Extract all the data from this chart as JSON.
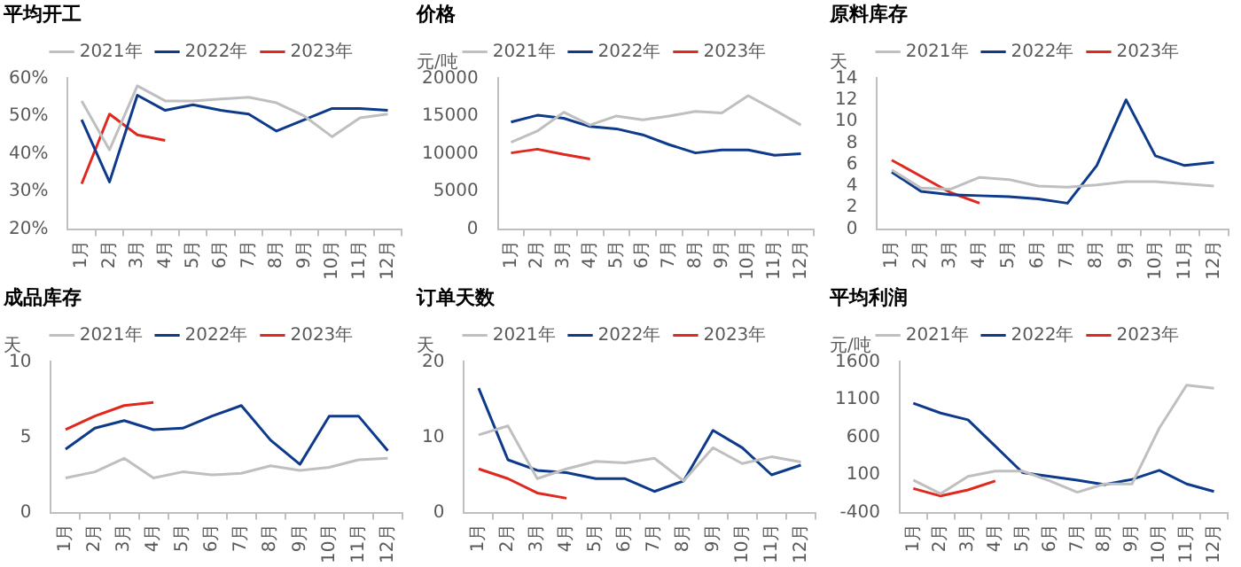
{
  "chart_data": [
    {
      "type": "line",
      "title": "平均开工",
      "categories": [
        "1月",
        "2月",
        "3月",
        "4月",
        "5月",
        "6月",
        "7月",
        "8月",
        "9月",
        "10月",
        "11月",
        "12月"
      ],
      "ylim": [
        20,
        60
      ],
      "yticks": [
        {
          "value": 20,
          "label": "20%"
        },
        {
          "value": 30,
          "label": "30%"
        },
        {
          "value": 40,
          "label": "40%"
        },
        {
          "value": 50,
          "label": "50%"
        },
        {
          "value": 60,
          "label": "60%"
        }
      ],
      "grid": false,
      "legend": "top",
      "marker": "none",
      "series": [
        {
          "name": "2021年",
          "color": "#bfbfbf",
          "values": [
            54,
            41,
            58,
            54,
            54,
            54.5,
            55,
            53.5,
            50,
            44.5,
            49.5,
            50.5
          ]
        },
        {
          "name": "2022年",
          "color": "#0d3a8a",
          "values": [
            49,
            32.5,
            55.5,
            51.5,
            53,
            51.5,
            50.5,
            46,
            49,
            52,
            52,
            51.5
          ]
        },
        {
          "name": "2023年",
          "color": "#e0281e",
          "values": [
            32,
            50.5,
            45,
            43.5,
            null,
            null,
            null,
            null,
            null,
            null,
            null,
            null
          ]
        }
      ]
    },
    {
      "type": "line",
      "title": "价格",
      "ylabel": "元/吨",
      "categories": [
        "1月",
        "2月",
        "3月",
        "4月",
        "5月",
        "6月",
        "7月",
        "8月",
        "9月",
        "10月",
        "11月",
        "12月"
      ],
      "ylim": [
        0,
        20000
      ],
      "yticks": [
        0,
        5000,
        10000,
        15000,
        20000
      ],
      "grid": false,
      "legend": "top",
      "marker": "none",
      "series": [
        {
          "name": "2021年",
          "color": "#bfbfbf",
          "values": [
            11500,
            13000,
            15500,
            13800,
            15000,
            14500,
            15000,
            15600,
            15400,
            17700,
            15800,
            13800
          ]
        },
        {
          "name": "2022年",
          "color": "#0d3a8a",
          "values": [
            14200,
            15100,
            14700,
            13600,
            13300,
            12500,
            11200,
            10100,
            10500,
            10500,
            9800,
            10000
          ]
        },
        {
          "name": "2023年",
          "color": "#e0281e",
          "values": [
            10100,
            10600,
            9900,
            9300,
            null,
            null,
            null,
            null,
            null,
            null,
            null,
            null
          ]
        }
      ]
    },
    {
      "type": "line",
      "title": "原料库存",
      "ylabel": "天",
      "categories": [
        "1月",
        "2月",
        "3月",
        "4月",
        "5月",
        "6月",
        "7月",
        "8月",
        "9月",
        "10月",
        "11月",
        "12月"
      ],
      "ylim": [
        0,
        14
      ],
      "yticks": [
        0,
        2,
        4,
        6,
        8,
        10,
        12,
        14
      ],
      "grid": false,
      "legend": "top",
      "marker": "none",
      "series": [
        {
          "name": "2021年",
          "color": "#bfbfbf",
          "values": [
            5.5,
            3.8,
            3.7,
            4.8,
            4.6,
            4.0,
            3.9,
            4.1,
            4.4,
            4.4,
            4.2,
            4.0
          ]
        },
        {
          "name": "2022年",
          "color": "#0d3a8a",
          "values": [
            5.3,
            3.5,
            3.2,
            3.1,
            3.0,
            2.8,
            2.4,
            5.9,
            12,
            6.8,
            5.9,
            6.2
          ]
        },
        {
          "name": "2023年",
          "color": "#e0281e",
          "values": [
            6.4,
            4.9,
            3.4,
            2.4,
            null,
            null,
            null,
            null,
            null,
            null,
            null,
            null
          ]
        }
      ]
    },
    {
      "type": "line",
      "title": "成品库存",
      "ylabel": "天",
      "categories": [
        "1月",
        "2月",
        "3月",
        "4月",
        "5月",
        "6月",
        "7月",
        "8月",
        "9月",
        "10月",
        "11月",
        "12月"
      ],
      "ylim": [
        0,
        10
      ],
      "yticks": [
        0,
        5,
        10
      ],
      "grid": false,
      "legend": "top",
      "marker": "none",
      "series": [
        {
          "name": "2021年",
          "color": "#bfbfbf",
          "values": [
            2.3,
            2.7,
            3.6,
            2.3,
            2.7,
            2.5,
            2.6,
            3.1,
            2.8,
            3.0,
            3.5,
            3.6
          ]
        },
        {
          "name": "2022年",
          "color": "#0d3a8a",
          "values": [
            4.2,
            5.6,
            6.1,
            5.5,
            5.6,
            6.4,
            7.1,
            4.8,
            3.2,
            6.4,
            6.4,
            4.1
          ]
        },
        {
          "name": "2023年",
          "color": "#e0281e",
          "values": [
            5.5,
            6.4,
            7.1,
            7.3,
            null,
            null,
            null,
            null,
            null,
            null,
            null,
            null
          ]
        }
      ]
    },
    {
      "type": "line",
      "title": "订单天数",
      "ylabel": "天",
      "categories": [
        "1月",
        "2月",
        "3月",
        "4月",
        "5月",
        "6月",
        "7月",
        "8月",
        "9月",
        "10月",
        "11月",
        "12月"
      ],
      "ylim": [
        0,
        20
      ],
      "yticks": [
        0,
        10,
        20
      ],
      "grid": false,
      "legend": "top",
      "marker": "none",
      "series": [
        {
          "name": "2021年",
          "color": "#bfbfbf",
          "values": [
            10.3,
            11.5,
            4.5,
            5.8,
            6.8,
            6.6,
            7.2,
            4.2,
            8.6,
            6.5,
            7.4,
            6.7
          ]
        },
        {
          "name": "2022年",
          "color": "#0d3a8a",
          "values": [
            16.5,
            7,
            5.6,
            5.3,
            4.5,
            4.5,
            2.8,
            4.2,
            10.9,
            8.6,
            5.0,
            6.3
          ]
        },
        {
          "name": "2023年",
          "color": "#e0281e",
          "values": [
            5.8,
            4.5,
            2.6,
            1.9,
            null,
            null,
            null,
            null,
            null,
            null,
            null,
            null
          ]
        }
      ]
    },
    {
      "type": "line",
      "title": "平均利润",
      "ylabel": "元/吨",
      "categories": [
        "1月",
        "2月",
        "3月",
        "4月",
        "5月",
        "6月",
        "7月",
        "8月",
        "9月",
        "10月",
        "11月",
        "12月"
      ],
      "ylim": [
        -400,
        1600
      ],
      "yticks": [
        -400,
        100,
        600,
        1100,
        1600
      ],
      "grid": false,
      "legend": "top",
      "marker": "none",
      "series": [
        {
          "name": "2021年",
          "color": "#bfbfbf",
          "values": [
            30,
            -150,
            80,
            150,
            150,
            20,
            -130,
            -20,
            -20,
            720,
            1290,
            1250
          ]
        },
        {
          "name": "2022年",
          "color": "#0d3a8a",
          "values": [
            1050,
            920,
            830,
            480,
            130,
            80,
            30,
            -30,
            40,
            160,
            -20,
            -120
          ]
        },
        {
          "name": "2023年",
          "color": "#e0281e",
          "values": [
            -80,
            -180,
            -100,
            20,
            null,
            null,
            null,
            null,
            null,
            null,
            null,
            null
          ]
        }
      ]
    }
  ]
}
